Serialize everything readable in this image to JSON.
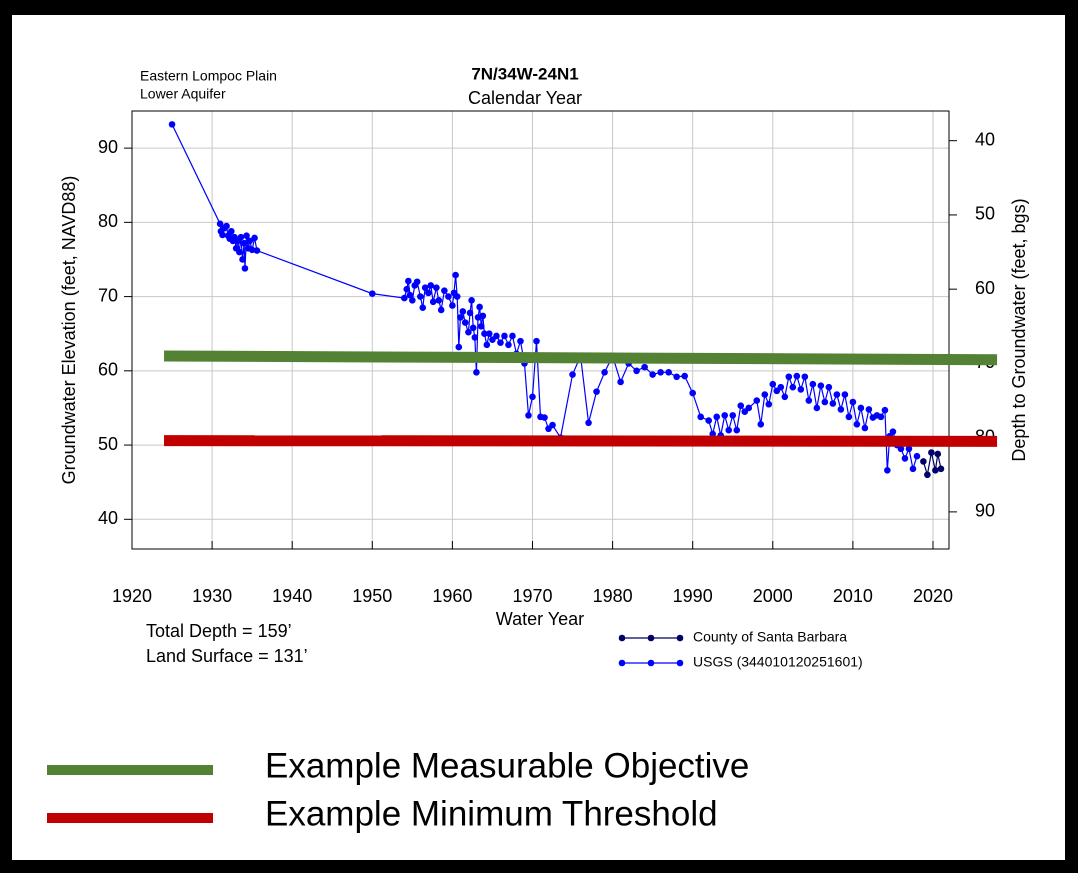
{
  "chart_data": {
    "type": "line",
    "title": "7N/34W-24N1",
    "subtitle": "Calendar Year",
    "annotations": [
      "Eastern Lompoc Plain",
      "Lower Aquifer",
      "Total Depth = 159’",
      "Land Surface = 131’"
    ],
    "x_label": "Water Year",
    "y_label": "Groundwater Elevation (feet, NAVD88)",
    "y2_label": "Depth to Groundwater (feet, bgs)",
    "xlim": [
      1920,
      2022
    ],
    "xticks": [
      1920,
      1930,
      1940,
      1950,
      1960,
      1970,
      1980,
      1990,
      2000,
      2010,
      2020
    ],
    "ylim": [
      36,
      95
    ],
    "yticks": [
      40,
      50,
      60,
      70,
      80,
      90
    ],
    "y2lim": [
      95,
      36
    ],
    "y2ticks": [
      40,
      50,
      60,
      70,
      80,
      90
    ],
    "grid": true,
    "series": [
      {
        "name": "County of Santa Barbara",
        "color": "#000066",
        "x": [
          2018.8,
          2019.3,
          2019.8,
          2020.3,
          2020.6,
          2021
        ],
        "values": [
          47.8,
          46.0,
          49.0,
          46.6,
          48.8,
          46.8
        ]
      },
      {
        "name": "USGS (344010120251601)",
        "color": "#0000ff",
        "x": [
          1925,
          1931,
          1931.1,
          1931.3,
          1931.5,
          1931.8,
          1932,
          1932.2,
          1932.4,
          1932.6,
          1932.8,
          1933,
          1933.2,
          1933.4,
          1933.6,
          1933.8,
          1934,
          1934.1,
          1934.3,
          1934.5,
          1934.7,
          1935,
          1935.3,
          1935.6,
          1950,
          1954,
          1954.3,
          1954.5,
          1954.7,
          1955,
          1955.3,
          1955.6,
          1956,
          1956.3,
          1956.6,
          1957,
          1957.3,
          1957.6,
          1958,
          1958.3,
          1958.6,
          1959,
          1959.5,
          1960,
          1960.2,
          1960.4,
          1960.6,
          1960.8,
          1961,
          1961.3,
          1961.6,
          1962,
          1962.2,
          1962.4,
          1962.6,
          1962.8,
          1963,
          1963.2,
          1963.4,
          1963.6,
          1963.8,
          1964,
          1964.3,
          1964.6,
          1965,
          1965.5,
          1966,
          1966.5,
          1967,
          1967.5,
          1968,
          1968.5,
          1969,
          1969.5,
          1970,
          1970.5,
          1971,
          1971.5,
          1972,
          1972.5,
          1973.5,
          1975,
          1976,
          1977,
          1978,
          1979,
          1980,
          1981,
          1982,
          1983,
          1984,
          1985,
          1986,
          1987,
          1988,
          1989,
          1990,
          1991,
          1992,
          1992.5,
          1993,
          1993.5,
          1994,
          1994.5,
          1995,
          1995.5,
          1996,
          1996.5,
          1997,
          1998,
          1998.5,
          1999,
          1999.5,
          2000,
          2000.5,
          2001,
          2001.5,
          2002,
          2002.5,
          2003,
          2003.5,
          2004,
          2004.5,
          2005,
          2005.5,
          2006,
          2006.5,
          2007,
          2007.5,
          2008,
          2008.5,
          2009,
          2009.5,
          2010,
          2010.5,
          2011,
          2011.5,
          2012,
          2012.5,
          2013,
          2013.5,
          2014,
          2014.3,
          2014.6,
          2015,
          2015.5,
          2016,
          2016.5,
          2017,
          2017.5,
          2018
        ],
        "values": [
          93.2,
          79.8,
          78.8,
          78.3,
          79.2,
          79.5,
          78.2,
          77.8,
          78.8,
          77.5,
          78.0,
          76.5,
          77.5,
          76.0,
          78.0,
          75.0,
          77.2,
          73.8,
          78.2,
          76.5,
          77.5,
          76.3,
          77.9,
          76.2,
          70.4,
          69.8,
          71.0,
          72.1,
          70.2,
          69.5,
          71.5,
          72.0,
          70.0,
          68.5,
          71.2,
          70.5,
          71.5,
          69.3,
          71.2,
          69.5,
          68.2,
          70.8,
          70.0,
          68.8,
          70.5,
          72.9,
          70.0,
          63.2,
          67.2,
          68.0,
          66.5,
          65.2,
          67.8,
          69.5,
          65.8,
          64.5,
          59.8,
          67.2,
          68.6,
          66.0,
          67.4,
          65.0,
          63.5,
          65.0,
          64.2,
          64.7,
          63.8,
          64.7,
          63.5,
          64.7,
          62.3,
          64.0,
          61.0,
          54.0,
          56.5,
          64.0,
          53.8,
          53.7,
          52.2,
          52.7,
          51.0,
          59.5,
          62.0,
          53.0,
          57.2,
          59.8,
          62.0,
          58.5,
          61.0,
          60.0,
          60.5,
          59.5,
          59.8,
          59.8,
          59.2,
          59.3,
          57.0,
          53.8,
          53.3,
          51.5,
          53.8,
          51.3,
          54.0,
          52.0,
          54.0,
          52.0,
          55.3,
          54.5,
          55.0,
          56.0,
          52.8,
          56.8,
          55.5,
          58.2,
          57.3,
          57.8,
          56.5,
          59.2,
          57.8,
          59.3,
          57.5,
          59.2,
          56.0,
          58.2,
          55.0,
          58.0,
          55.8,
          57.8,
          55.6,
          56.8,
          54.8,
          56.8,
          53.8,
          55.8,
          52.8,
          55.0,
          52.3,
          54.8,
          53.7,
          54.0,
          53.8,
          54.7,
          46.6,
          51.2,
          51.8,
          50.0,
          49.5,
          48.2,
          49.5,
          46.8,
          48.5
        ]
      }
    ],
    "threshold_lines": [
      {
        "name": "Example Measurable Objective",
        "color": "#548235",
        "x": [
          1924,
          2028
        ],
        "values": [
          62.0,
          61.5
        ]
      },
      {
        "name": "Example Minimum Threshold",
        "color": "#c00000",
        "x": [
          1924,
          2028
        ],
        "values": [
          50.6,
          50.5
        ]
      }
    ]
  }
}
